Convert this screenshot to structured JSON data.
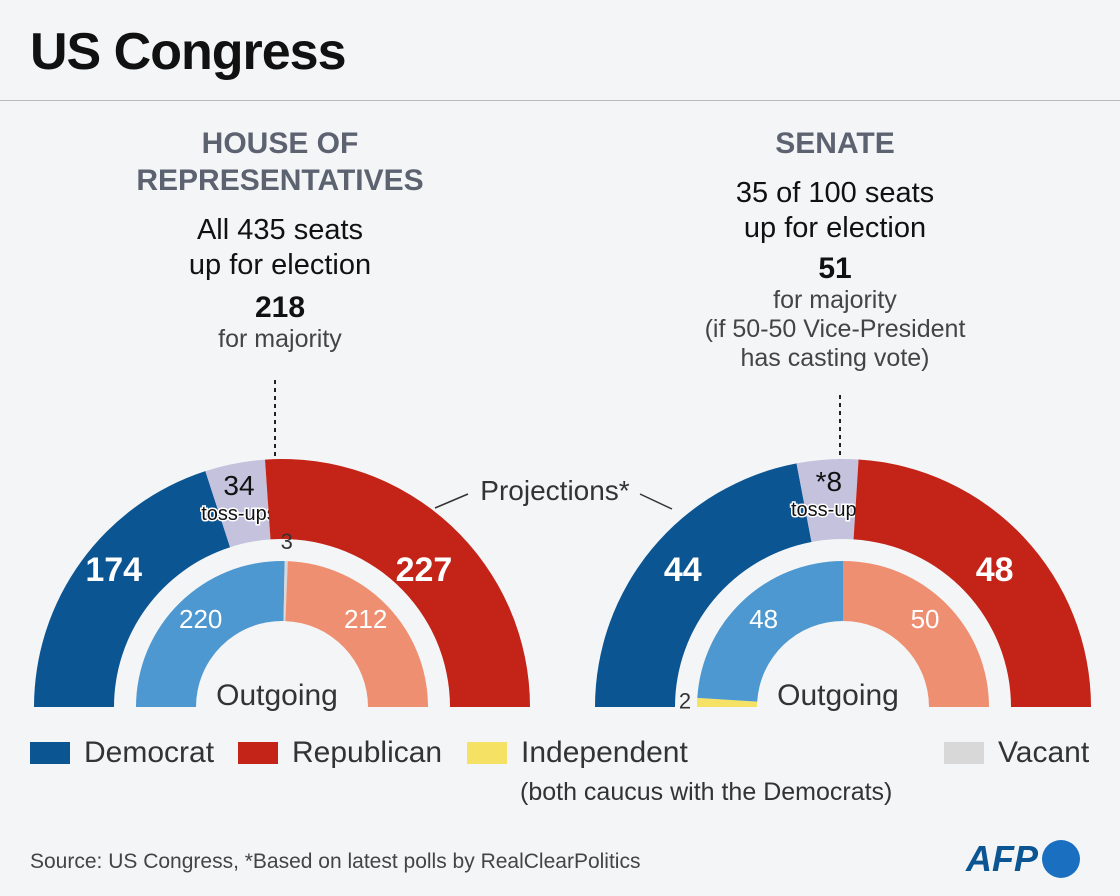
{
  "title": "US Congress",
  "house": {
    "heading_1": "HOUSE OF",
    "heading_2": "REPRESENTATIVES",
    "sub_1": "All 435 seats",
    "sub_2": "up for election",
    "majority": "218",
    "majority_label": "for majority"
  },
  "senate": {
    "heading": "SENATE",
    "sub_1": "35 of 100 seats",
    "sub_2": "up for election",
    "majority": "51",
    "majority_label": "for majority",
    "note_1": "(if 50-50 Vice-President",
    "note_2": "has casting vote)"
  },
  "projections_label": "Projections*",
  "outgoing_label": "Outgoing",
  "colors": {
    "democrat": "#0b5592",
    "republican": "#c42417",
    "tossup": "#c4c2dd",
    "democrat_light": "#4d98d0",
    "republican_light": "#ef8f72",
    "independent": "#f5e164",
    "vacant": "#d8d8d8"
  },
  "chart_data": [
    {
      "type": "pie",
      "title": "HOUSE OF REPRESENTATIVES",
      "rings": [
        {
          "name": "Projections*",
          "segments": [
            {
              "label": "174",
              "party": "Democrat",
              "value": 174
            },
            {
              "label": "34",
              "sublabel": "toss-ups",
              "party": "Toss-up",
              "value": 34
            },
            {
              "label": "227",
              "party": "Republican",
              "value": 227
            }
          ]
        },
        {
          "name": "Outgoing",
          "segments": [
            {
              "label": "220",
              "party": "Democrat",
              "value": 220
            },
            {
              "label": "3",
              "party": "Vacant",
              "value": 3
            },
            {
              "label": "212",
              "party": "Republican",
              "value": 212
            }
          ]
        }
      ]
    },
    {
      "type": "pie",
      "title": "SENATE",
      "rings": [
        {
          "name": "Projections*",
          "segments": [
            {
              "label": "44",
              "party": "Democrat",
              "value": 44
            },
            {
              "label": "*8",
              "sublabel": "toss-ups",
              "party": "Toss-up",
              "value": 8
            },
            {
              "label": "48",
              "party": "Republican",
              "value": 48
            }
          ]
        },
        {
          "name": "Outgoing",
          "segments": [
            {
              "label": "2",
              "party": "Independent",
              "value": 2
            },
            {
              "label": "48",
              "party": "Democrat",
              "value": 48
            },
            {
              "label": "50",
              "party": "Republican",
              "value": 50
            }
          ]
        }
      ]
    }
  ],
  "legend": {
    "democrat": "Democrat",
    "republican": "Republican",
    "independent": "Independent",
    "independent_note": "(both caucus with the Democrats)",
    "vacant": "Vacant"
  },
  "source": "Source: US Congress, *Based on latest polls by RealClearPolitics",
  "logo": "AFP"
}
